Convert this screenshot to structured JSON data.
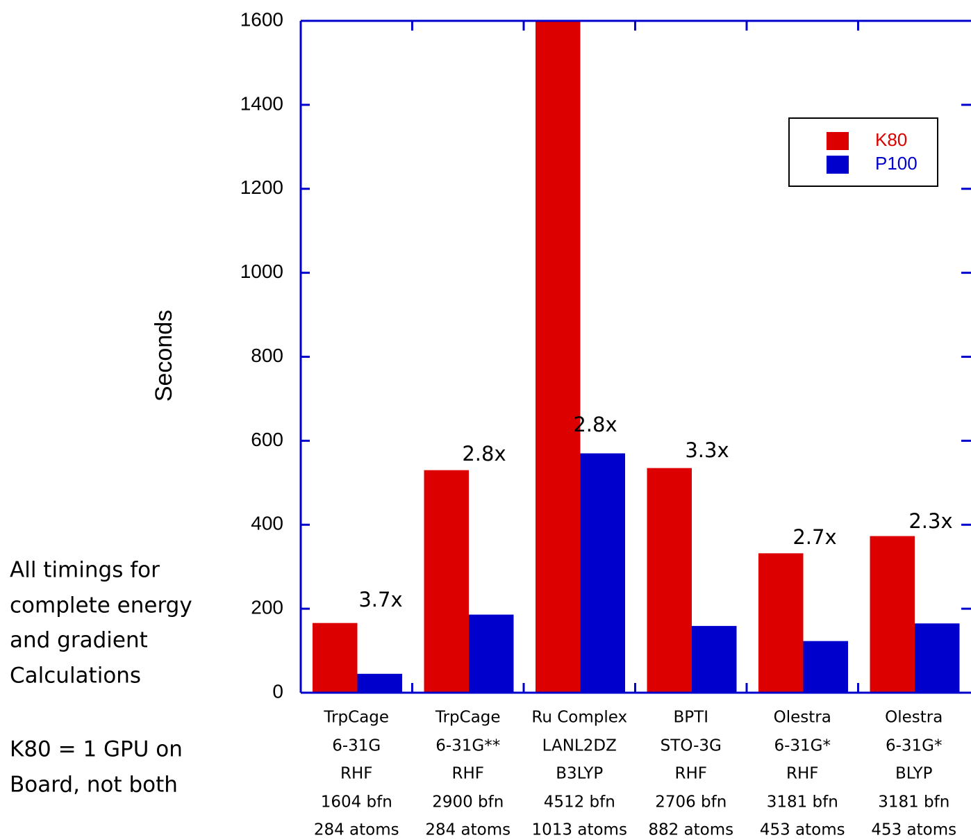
{
  "chart_data": {
    "type": "bar",
    "y_label": "Seconds",
    "categories": [
      [
        "TrpCage",
        "6-31G",
        "RHF",
        "1604 bfn",
        "284 atoms"
      ],
      [
        "TrpCage",
        "6-31G**",
        "RHF",
        "2900 bfn",
        "284 atoms"
      ],
      [
        "Ru Complex",
        "LANL2DZ",
        "B3LYP",
        "4512 bfn",
        "1013 atoms"
      ],
      [
        "BPTI",
        "STO-3G",
        "RHF",
        "2706 bfn",
        "882 atoms"
      ],
      [
        "Olestra",
        "6-31G*",
        "RHF",
        "3181 bfn",
        "453 atoms"
      ],
      [
        "Olestra",
        "6-31G*",
        "BLYP",
        "3181 bfn",
        "453 atoms"
      ]
    ],
    "series": [
      {
        "name": "K80",
        "color": "#dd0000",
        "values": [
          166,
          530,
          1600,
          535,
          332,
          373
        ]
      },
      {
        "name": "P100",
        "color": "#0000cc",
        "values": [
          45,
          186,
          570,
          159,
          123,
          165
        ]
      }
    ],
    "annotations": [
      "3.7x",
      "2.8x",
      "2.8x",
      "3.3x",
      "2.7x",
      "2.3x"
    ],
    "notes": [
      [
        "All timings for",
        "complete energy",
        "and gradient",
        "Calculations"
      ],
      [
        "K80 = 1 GPU on",
        "Board, not both"
      ]
    ],
    "ylim": [
      0,
      1600
    ],
    "yticks": [
      0,
      200,
      400,
      600,
      800,
      1000,
      1200,
      1400,
      1600
    ],
    "axis_color": "#0000cc",
    "legend": "upper right"
  }
}
